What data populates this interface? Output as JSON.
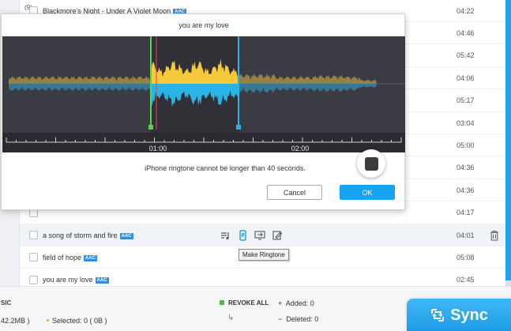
{
  "list": {
    "index_label": "(9)",
    "songs": [
      {
        "title": "Blackmore's Night - Under A Violet Moon",
        "badge": "AAC",
        "duration": "04:22"
      },
      {
        "title": "",
        "badge": "",
        "duration": "04:46"
      },
      {
        "title": "",
        "badge": "",
        "duration": "05:42"
      },
      {
        "title": "",
        "badge": "",
        "duration": "04:06"
      },
      {
        "title": "",
        "badge": "",
        "duration": "05:17"
      },
      {
        "title": "",
        "badge": "",
        "duration": "03:04"
      },
      {
        "title": "",
        "badge": "",
        "duration": "05:00"
      },
      {
        "title": "",
        "badge": "",
        "duration": "04:36"
      },
      {
        "title": "",
        "badge": "",
        "duration": "04:36"
      },
      {
        "title": "",
        "badge": "",
        "duration": "04:17"
      },
      {
        "title": "a song of storm and fire",
        "badge": "AAC",
        "duration": "04:01"
      },
      {
        "title": "field of hope",
        "badge": "AAC",
        "duration": "05:08"
      },
      {
        "title": "you are my love",
        "badge": "AAC",
        "duration": "02:45"
      }
    ],
    "tooltip": "Make Ringtone"
  },
  "dialog": {
    "title": "you are my love",
    "timeline": {
      "tick_labels": [
        "01:00",
        "02:00"
      ]
    },
    "notice": "iPhone ringtone cannot be longer than 40 seconds.",
    "cancel_label": "Cancel",
    "ok_label": "OK",
    "colors": {
      "waveform_top": "#f5c93a",
      "waveform_bottom": "#2ab4e6",
      "start_marker": "#5fd04a",
      "end_marker": "#2ab4e6",
      "playhead": "#e04848"
    }
  },
  "bottom": {
    "music_label": "SIC",
    "size_label": "42.2MB )",
    "selected_label": "Selected: 0 ( 0B )",
    "revoke_label": "REVOKE ALL",
    "added_label": "Added: 0",
    "deleted_label": "Deleted: 0",
    "sync_label": "Sync"
  }
}
